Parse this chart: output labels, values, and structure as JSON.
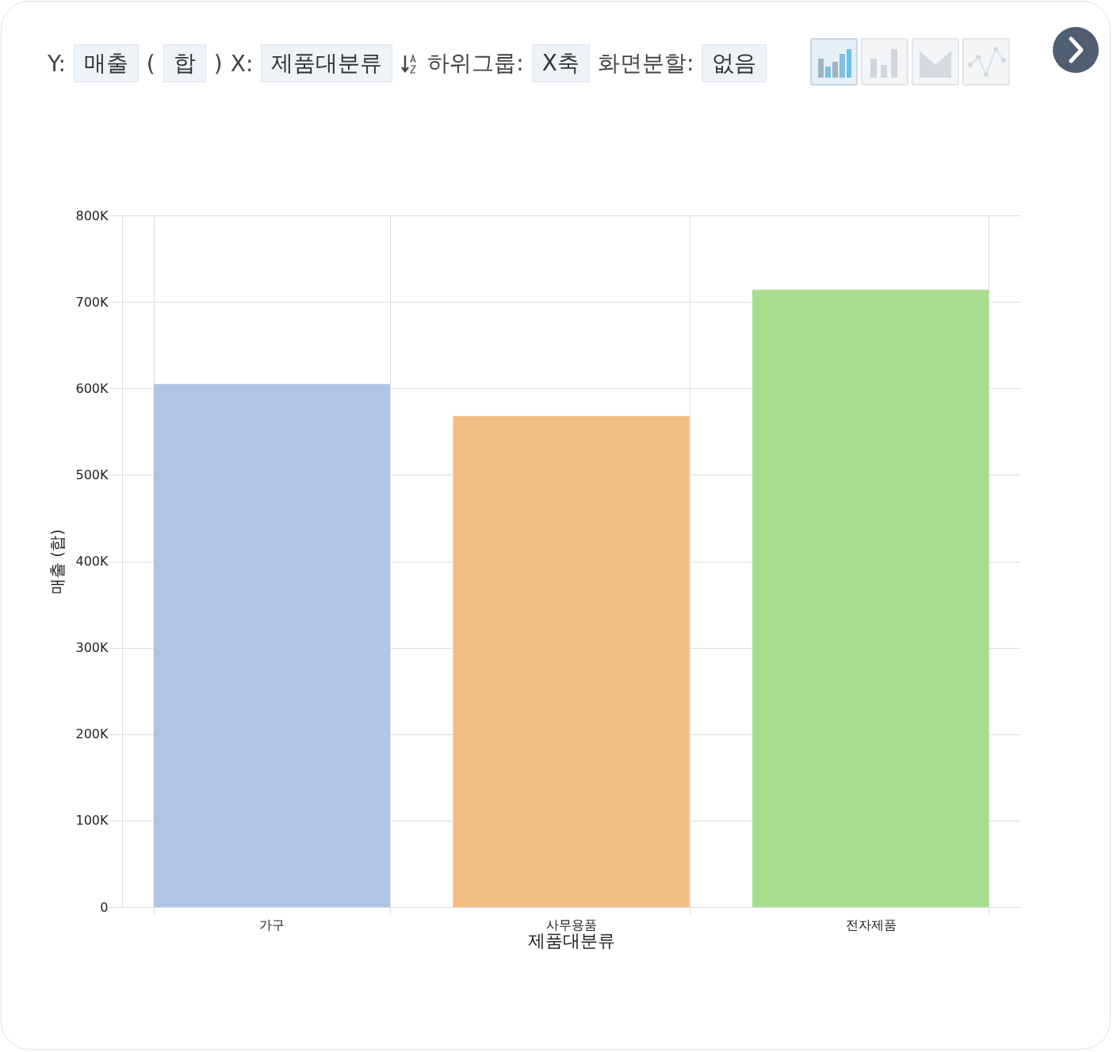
{
  "chart_data": {
    "type": "bar",
    "xlabel": "제품대분류",
    "ylabel": "매출 (합)",
    "categories": [
      "가구",
      "사무용품",
      "전자제품"
    ],
    "values": [
      605000,
      568000,
      714000
    ],
    "colors": [
      "#b0c5e3",
      "#f2be85",
      "#a8dd8f"
    ],
    "ylim": [
      0,
      800000
    ],
    "yticks": [
      0,
      {
        "value": 100000,
        "label": "100K"
      },
      {
        "value": 200000,
        "label": "200K"
      },
      {
        "value": 300000,
        "label": "300K"
      },
      {
        "value": 400000,
        "label": "400K"
      },
      {
        "value": 500000,
        "label": "500K"
      },
      {
        "value": 600000,
        "label": "600K"
      },
      {
        "value": 700000,
        "label": "700K"
      },
      {
        "value": 800000,
        "label": "800K"
      }
    ],
    "grid": true,
    "legend": false,
    "annotations": [
      "Y:",
      "매출",
      "(",
      "합",
      ")",
      "X:",
      "제품대분류",
      "하위그룹:",
      "X축",
      "화면분할:",
      "없음"
    ]
  }
}
